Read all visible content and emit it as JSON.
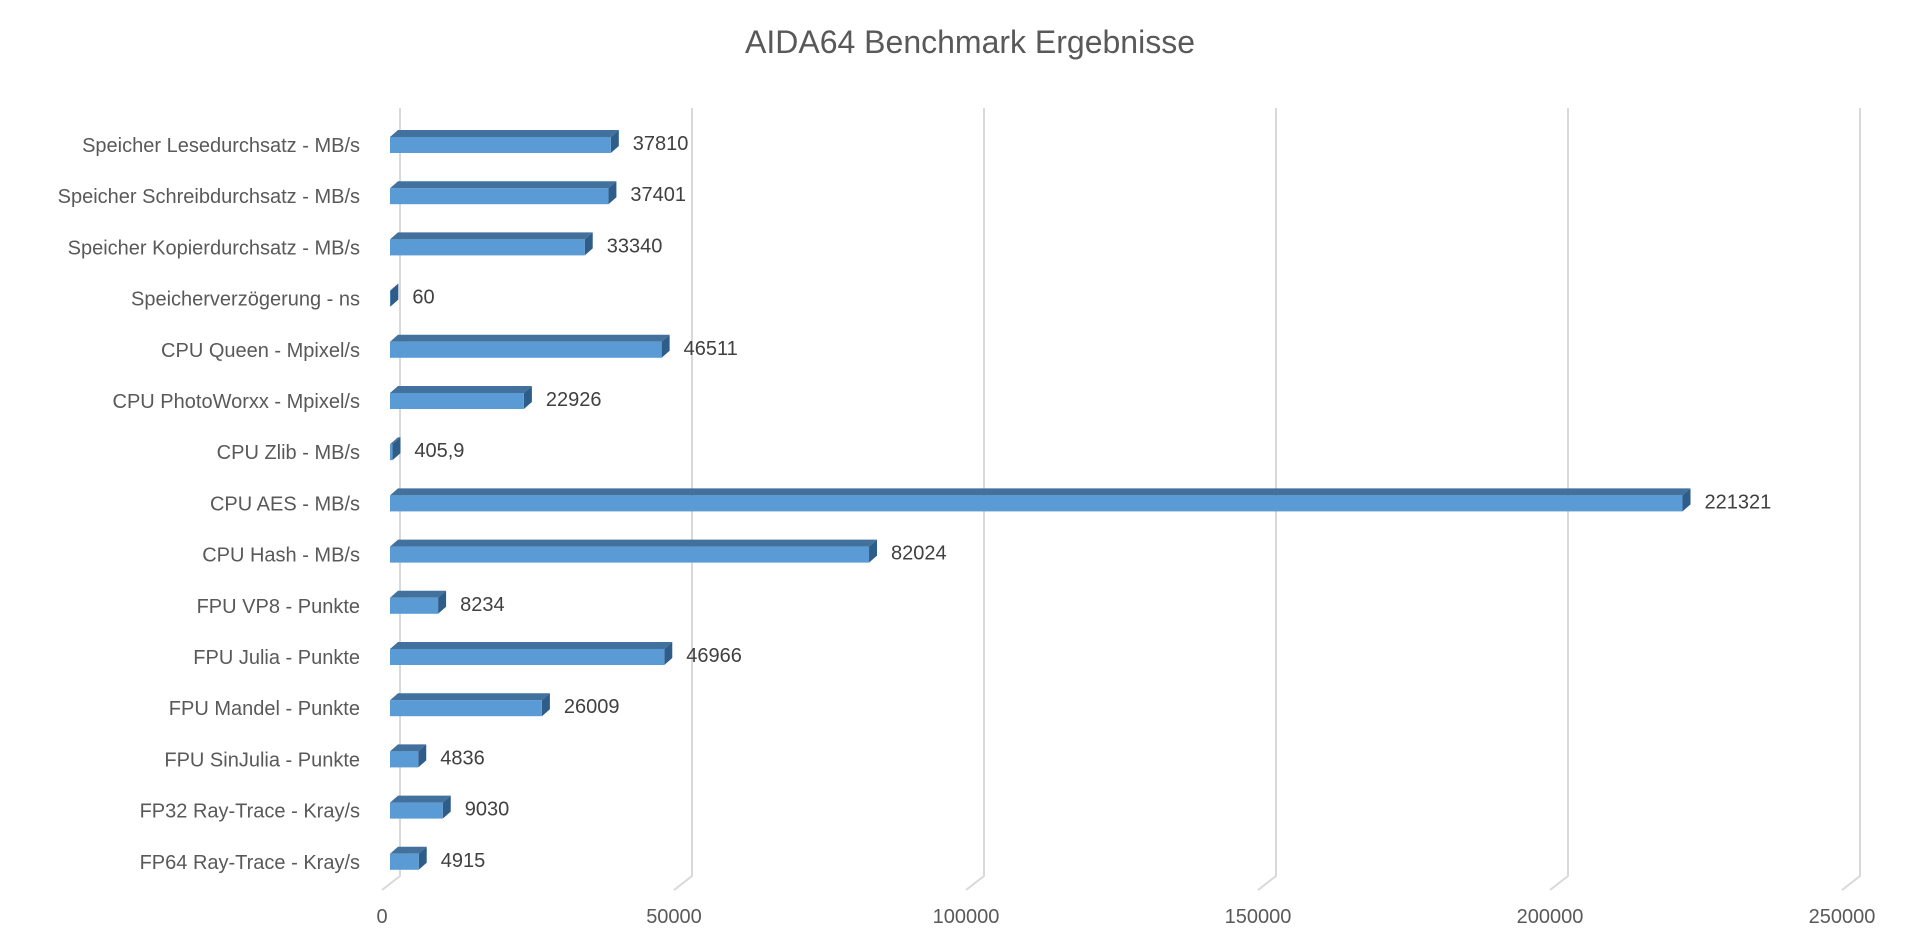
{
  "chart_data": {
    "type": "bar",
    "orientation": "horizontal",
    "title": "AIDA64 Benchmark Ergebnisse",
    "xlabel": "",
    "ylabel": "",
    "categories": [
      "Speicher Lesedurchsatz - MB/s",
      "Speicher Schreibdurchsatz - MB/s",
      "Speicher Kopierdurchsatz - MB/s",
      "Speicherverzögerung - ns",
      "CPU Queen - Mpixel/s",
      "CPU PhotoWorxx - Mpixel/s",
      "CPU Zlib - MB/s",
      "CPU AES - MB/s",
      "CPU Hash - MB/s",
      "FPU VP8 - Punkte",
      "FPU Julia - Punkte",
      "FPU Mandel - Punkte",
      "FPU SinJulia - Punkte",
      "FP32 Ray-Trace - Kray/s",
      "FP64 Ray-Trace - Kray/s"
    ],
    "values": [
      37810,
      37401,
      33340,
      60,
      46511,
      22926,
      405.9,
      221321,
      82024,
      8234,
      46966,
      26009,
      4836,
      9030,
      4915
    ],
    "value_labels": [
      "37810",
      "37401",
      "33340",
      "60",
      "46511",
      "22926",
      "405,9",
      "221321",
      "82024",
      "8234",
      "46966",
      "26009",
      "4836",
      "9030",
      "4915"
    ],
    "xlim": [
      0,
      250000
    ],
    "x_ticks": [
      0,
      50000,
      100000,
      150000,
      200000,
      250000
    ],
    "x_tick_labels": [
      "0",
      "50000",
      "100000",
      "150000",
      "200000",
      "250000"
    ],
    "grid": true,
    "legend": "none",
    "style": "3d",
    "colors": {
      "bar_front": "#5B9BD5",
      "bar_top": "#41719C",
      "bar_side": "#2E5D8A",
      "grid": "#D9D9D9",
      "text": "#595959",
      "value_text": "#404040"
    }
  }
}
